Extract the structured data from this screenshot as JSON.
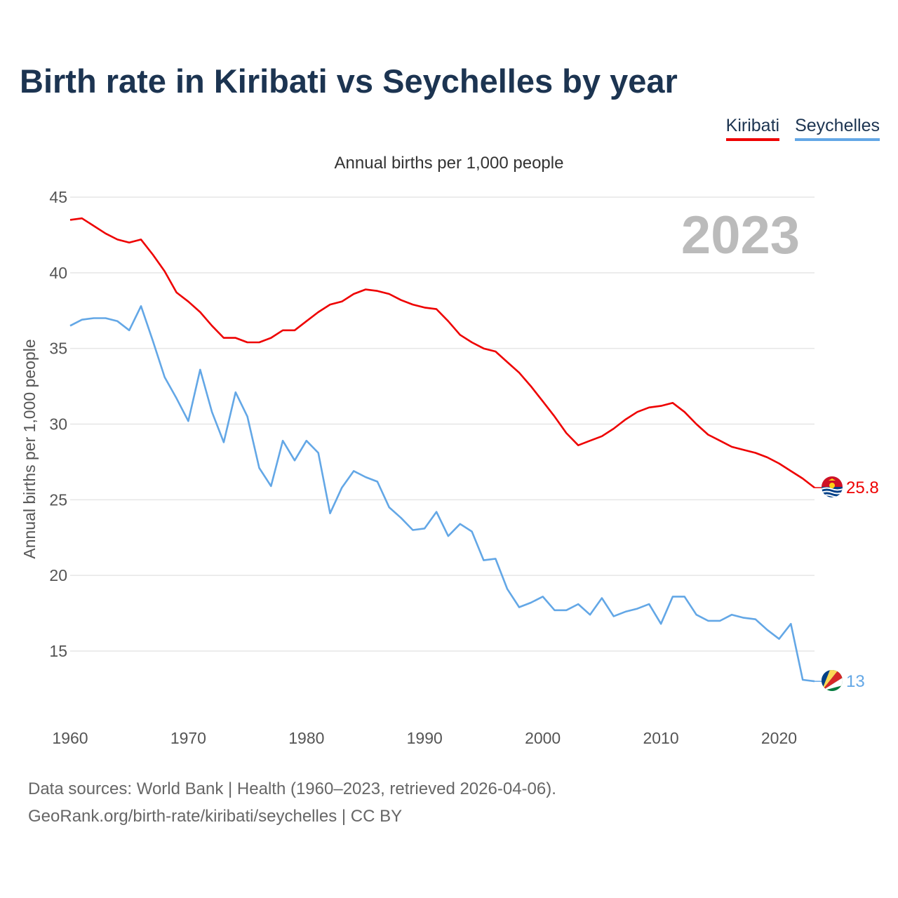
{
  "title": "Birth rate in Kiribati vs Seychelles by year",
  "legend": [
    {
      "name": "Kiribati",
      "color": "#ee0000"
    },
    {
      "name": "Seychelles",
      "color": "#63a7e6"
    }
  ],
  "source": {
    "line1": "Data sources: World Bank | Health (1960–2023, retrieved 2026-04-06).",
    "line2": "GeoRank.org/birth-rate/kiribati/seychelles | CC BY"
  },
  "chart_data": {
    "type": "line",
    "title": "Birth rate in Kiribati vs Seychelles by year",
    "subtitle": "Annual births per 1,000 people",
    "ylabel": "Annual births per 1,000 people",
    "xlabel": "",
    "highlight_year": "2023",
    "xlim": [
      1960,
      2023
    ],
    "ylim": [
      15,
      45
    ],
    "yticks": [
      15,
      20,
      25,
      30,
      35,
      40,
      45
    ],
    "xticks": [
      1960,
      1970,
      1980,
      1990,
      2000,
      2010,
      2020
    ],
    "grid": true,
    "x": [
      1960,
      1961,
      1962,
      1963,
      1964,
      1965,
      1966,
      1967,
      1968,
      1969,
      1970,
      1971,
      1972,
      1973,
      1974,
      1975,
      1976,
      1977,
      1978,
      1979,
      1980,
      1981,
      1982,
      1983,
      1984,
      1985,
      1986,
      1987,
      1988,
      1989,
      1990,
      1991,
      1992,
      1993,
      1994,
      1995,
      1996,
      1997,
      1998,
      1999,
      2000,
      2001,
      2002,
      2003,
      2004,
      2005,
      2006,
      2007,
      2008,
      2009,
      2010,
      2011,
      2012,
      2013,
      2014,
      2015,
      2016,
      2017,
      2018,
      2019,
      2020,
      2021,
      2022,
      2023
    ],
    "series": [
      {
        "name": "Kiribati",
        "color": "#ee0000",
        "end_label": "25.8",
        "values": [
          43.5,
          43.6,
          43.1,
          42.6,
          42.2,
          42.0,
          42.2,
          41.2,
          40.1,
          38.7,
          38.1,
          37.4,
          36.5,
          35.7,
          35.7,
          35.4,
          35.4,
          35.7,
          36.2,
          36.2,
          36.8,
          37.4,
          37.9,
          38.1,
          38.6,
          38.9,
          38.8,
          38.6,
          38.2,
          37.9,
          37.7,
          37.6,
          36.8,
          35.9,
          35.4,
          35.0,
          34.8,
          34.1,
          33.4,
          32.5,
          31.5,
          30.5,
          29.4,
          28.6,
          28.9,
          29.2,
          29.7,
          30.3,
          30.8,
          31.1,
          31.2,
          31.4,
          30.8,
          30.0,
          29.3,
          28.9,
          28.5,
          28.3,
          28.1,
          27.8,
          27.4,
          26.9,
          26.4,
          25.8
        ]
      },
      {
        "name": "Seychelles",
        "color": "#63a7e6",
        "end_label": "13",
        "values": [
          36.5,
          36.9,
          37.0,
          37.0,
          36.8,
          36.2,
          37.8,
          35.5,
          33.1,
          31.7,
          30.2,
          33.6,
          30.8,
          28.8,
          32.1,
          30.5,
          27.1,
          25.9,
          28.9,
          27.6,
          28.9,
          28.1,
          24.1,
          25.8,
          26.9,
          26.5,
          26.2,
          24.5,
          23.8,
          23.0,
          23.1,
          24.2,
          22.6,
          23.4,
          22.9,
          21.0,
          21.1,
          19.1,
          17.9,
          18.2,
          18.6,
          17.7,
          17.7,
          18.1,
          17.4,
          18.5,
          17.3,
          17.6,
          17.8,
          18.1,
          16.8,
          18.6,
          18.6,
          17.4,
          17.0,
          17.0,
          17.4,
          17.2,
          17.1,
          16.4,
          15.8,
          16.8,
          13.1,
          13.0
        ]
      }
    ]
  }
}
